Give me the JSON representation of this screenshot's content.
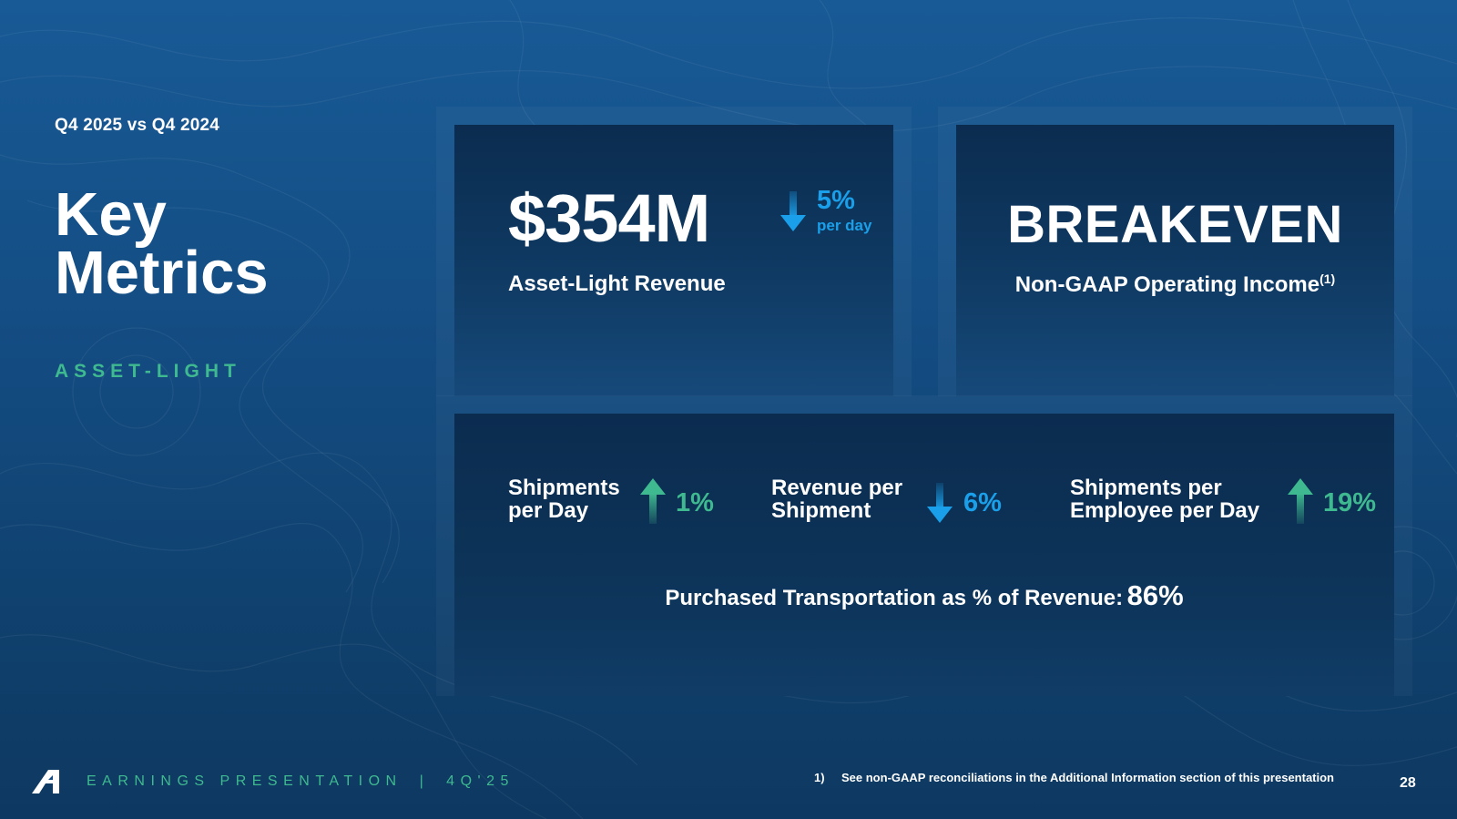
{
  "header": {
    "period": "Q4 2025 vs Q4 2024",
    "title_line1": "Key",
    "title_line2": "Metrics",
    "subtitle": "ASSET-LIGHT"
  },
  "revenue_card": {
    "value": "$354M",
    "change": "5%",
    "change_unit": "per day",
    "change_direction": "down",
    "label": "Asset-Light Revenue"
  },
  "income_card": {
    "value": "BREAKEVEN",
    "label": "Non-GAAP Operating Income",
    "footnote_ref": "(1)"
  },
  "metrics": [
    {
      "line1": "Shipments",
      "line2": "per Day",
      "change": "1%",
      "direction": "up"
    },
    {
      "line1": "Revenue per",
      "line2": "Shipment",
      "change": "6%",
      "direction": "down"
    },
    {
      "line1": "Shipments per",
      "line2": "Employee per Day",
      "change": "19%",
      "direction": "up"
    }
  ],
  "purchased_transportation": {
    "label": "Purchased Transportation as % of Revenue:",
    "value": "86%"
  },
  "footer": {
    "brand": "EARNINGS PRESENTATION",
    "separator": "|",
    "quarter": "4Q'25",
    "footnote_num": "1)",
    "footnote_text": "See non-GAAP reconciliations in the Additional Information section of this presentation",
    "page_number": "28"
  },
  "colors": {
    "accent_green": "#3fb98f",
    "accent_blue": "#1aa0ea",
    "background": "#134b80"
  },
  "icons": [
    "down-arrow-icon",
    "up-arrow-icon",
    "logo-icon"
  ]
}
